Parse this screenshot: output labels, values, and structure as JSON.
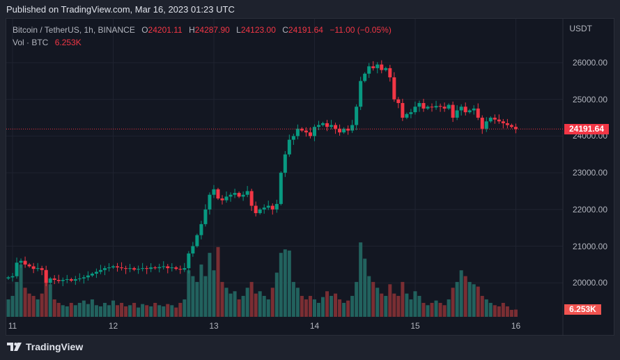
{
  "header": {
    "published": "Published on TradingView.com, Mar 16, 2023 01:23 UTC"
  },
  "legend": {
    "symbol": "Bitcoin / TetherUS, 1h, BINANCE",
    "o_label": "O",
    "o": "24201.11",
    "h_label": "H",
    "h": "24287.90",
    "l_label": "L",
    "l": "24123.00",
    "c_label": "C",
    "c": "24191.64",
    "change": "−11.00 (−0.05%)",
    "vol_label": "Vol · BTC",
    "vol": "6.253K"
  },
  "price_axis": {
    "currency": "USDT",
    "ticks": [
      "26000.00",
      "25000.00",
      "24000.00",
      "23000.00",
      "22000.00",
      "21000.00",
      "20000.00"
    ],
    "last_price": "24191.64",
    "last_volume": "6.253K"
  },
  "time_axis": {
    "ticks": [
      "11",
      "12",
      "13",
      "14",
      "15",
      "16"
    ]
  },
  "footer": {
    "brand": "TradingView"
  },
  "colors": {
    "up": "#089981",
    "down": "#f23645",
    "vol_up": "#22625e",
    "vol_down": "#7a2e33"
  },
  "chart_data": {
    "type": "candlestick",
    "interval": "1h",
    "price_range": [
      19400,
      26500
    ],
    "closes": [
      20150,
      20180,
      20550,
      20600,
      20500,
      20450,
      20380,
      20400,
      20350,
      20000,
      20120,
      20080,
      20050,
      20080,
      20100,
      20060,
      20100,
      20120,
      20150,
      20200,
      20250,
      20300,
      20350,
      20400,
      20420,
      20450,
      20420,
      20400,
      20380,
      20400,
      20360,
      20380,
      20400,
      20380,
      20420,
      20400,
      20430,
      20450,
      20400,
      20420,
      20380,
      20360,
      20400,
      20800,
      21000,
      21300,
      21600,
      22000,
      22400,
      22550,
      22300,
      22250,
      22350,
      22400,
      22450,
      22350,
      22400,
      22500,
      22100,
      21900,
      22000,
      22050,
      22100,
      22000,
      22150,
      23000,
      23500,
      23900,
      24000,
      24200,
      24150,
      24100,
      24000,
      24250,
      24300,
      24350,
      24250,
      24300,
      24200,
      24100,
      24200,
      24150,
      24300,
      24800,
      25500,
      25700,
      25900,
      25850,
      25950,
      25800,
      25850,
      25600,
      25000,
      24900,
      24500,
      24600,
      24650,
      24800,
      24900,
      24750,
      24800,
      24780,
      24820,
      24800,
      24750,
      24850,
      24500,
      24700,
      24800,
      24650,
      24700,
      24750,
      24500,
      24200,
      24400,
      24500,
      24450,
      24400,
      24350,
      24300,
      24250,
      24191.64
    ],
    "volumes_k": [
      15,
      18,
      30,
      45,
      25,
      20,
      18,
      15,
      20,
      40,
      28,
      15,
      12,
      10,
      9,
      12,
      10,
      12,
      14,
      11,
      15,
      10,
      9,
      12,
      10,
      14,
      10,
      12,
      9,
      10,
      12,
      8,
      11,
      10,
      9,
      12,
      10,
      9,
      11,
      10,
      8,
      12,
      15,
      40,
      35,
      30,
      45,
      35,
      55,
      40,
      60,
      30,
      25,
      20,
      22,
      15,
      18,
      25,
      30,
      20,
      22,
      18,
      15,
      25,
      38,
      55,
      58,
      57,
      30,
      25,
      18,
      15,
      18,
      15,
      12,
      17,
      22,
      18,
      20,
      15,
      12,
      14,
      18,
      30,
      64,
      50,
      35,
      30,
      25,
      20,
      18,
      28,
      20,
      18,
      30,
      20,
      15,
      22,
      18,
      12,
      10,
      12,
      14,
      12,
      10,
      15,
      25,
      30,
      40,
      35,
      30,
      28,
      26,
      18,
      15,
      12,
      10,
      9,
      12,
      9,
      6,
      6.253
    ]
  }
}
